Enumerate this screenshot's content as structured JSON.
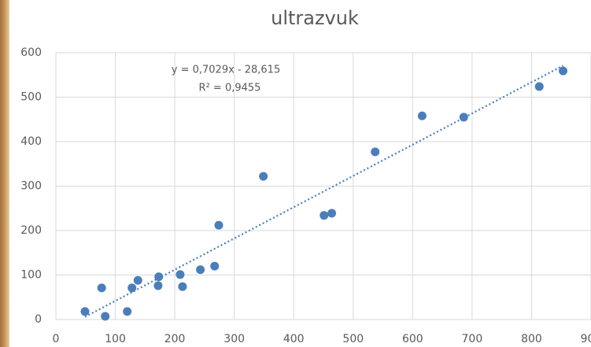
{
  "chart_data": {
    "type": "scatter",
    "title": "ultrazvuk",
    "x": [
      49,
      77,
      83,
      120,
      128,
      138,
      173,
      172,
      209,
      213,
      243,
      267,
      274,
      349,
      451,
      464,
      537,
      616,
      686,
      813,
      853
    ],
    "values": [
      18,
      71,
      7,
      18,
      71,
      88,
      96,
      76,
      101,
      74,
      112,
      120,
      212,
      322,
      234,
      239,
      377,
      458,
      455,
      524,
      559
    ],
    "color": "#4a7ebb",
    "xlim": [
      0,
      900
    ],
    "xticks": [
      0,
      100,
      200,
      300,
      400,
      500,
      600,
      700,
      800,
      900
    ],
    "ylim": [
      0,
      600
    ],
    "yticks": [
      0,
      100,
      200,
      300,
      400,
      500,
      600
    ],
    "grid": true,
    "trendline": {
      "equation": "y = 0,7029x - 28,615",
      "r_squared": "R² = 0,9455",
      "slope": 0.7029,
      "intercept": -28.615
    }
  }
}
